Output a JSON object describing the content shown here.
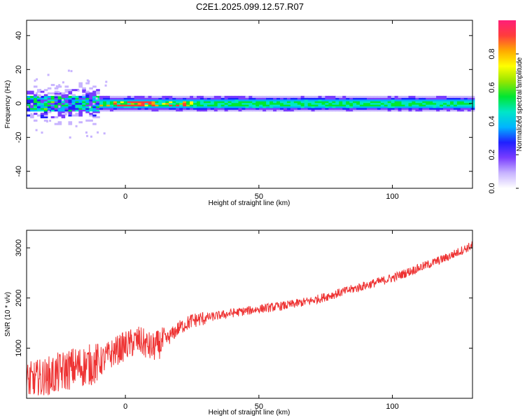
{
  "title": "C2E1.2025.099.12.57.R07",
  "colors": {
    "snr_line": "#ee3333",
    "background_band": "#ffffff"
  },
  "chart_data": [
    {
      "type": "heatmap",
      "xlabel": "Height of straight line (km)",
      "ylabel": "Frequency (Hz)",
      "xlim": [
        -37,
        130
      ],
      "ylim": [
        -50,
        49
      ],
      "xticks": [
        0,
        50,
        100
      ],
      "yticks": [
        -40,
        -20,
        0,
        20,
        40
      ],
      "colorbar": {
        "label": "Normalized spectral amplitude",
        "range": [
          0,
          1
        ],
        "ticks": [
          "0.0",
          "0.2",
          "0.4",
          "0.6",
          "0.8"
        ],
        "colormap": [
          "#ffffff",
          "#c8b4ff",
          "#7a3dff",
          "#2020ff",
          "#00b4ff",
          "#00e6c8",
          "#00e632",
          "#96e600",
          "#ffff00",
          "#ffaa00",
          "#ff3c3c",
          "#ff1e78"
        ]
      },
      "description_points": {
        "center_frequency_hz": 0,
        "band_halfwidth_hz": [
          -3,
          3
        ],
        "noisy_region_km": [
          -37,
          -10
        ],
        "peak_amplitude_km": [
          0,
          10
        ]
      }
    },
    {
      "type": "line",
      "xlabel": "Height of straight line (km)",
      "ylabel": "SNR (10 * v/v)",
      "xlim": [
        -37,
        130
      ],
      "ylim": [
        0,
        3350
      ],
      "xticks": [
        0,
        50,
        100
      ],
      "yticks": [
        1000,
        2000,
        3000
      ],
      "series": [
        {
          "x": [
            -37,
            -30,
            -25,
            -20,
            -15,
            -10,
            -5,
            0,
            5,
            10,
            15,
            20,
            25,
            30,
            40,
            50,
            60,
            70,
            80,
            90,
            100,
            110,
            120,
            130
          ],
          "y": [
            300,
            400,
            500,
            600,
            650,
            700,
            900,
            1050,
            1150,
            1000,
            1150,
            1400,
            1550,
            1600,
            1700,
            1780,
            1850,
            1950,
            2100,
            2250,
            2400,
            2600,
            2800,
            3050
          ]
        }
      ]
    }
  ]
}
